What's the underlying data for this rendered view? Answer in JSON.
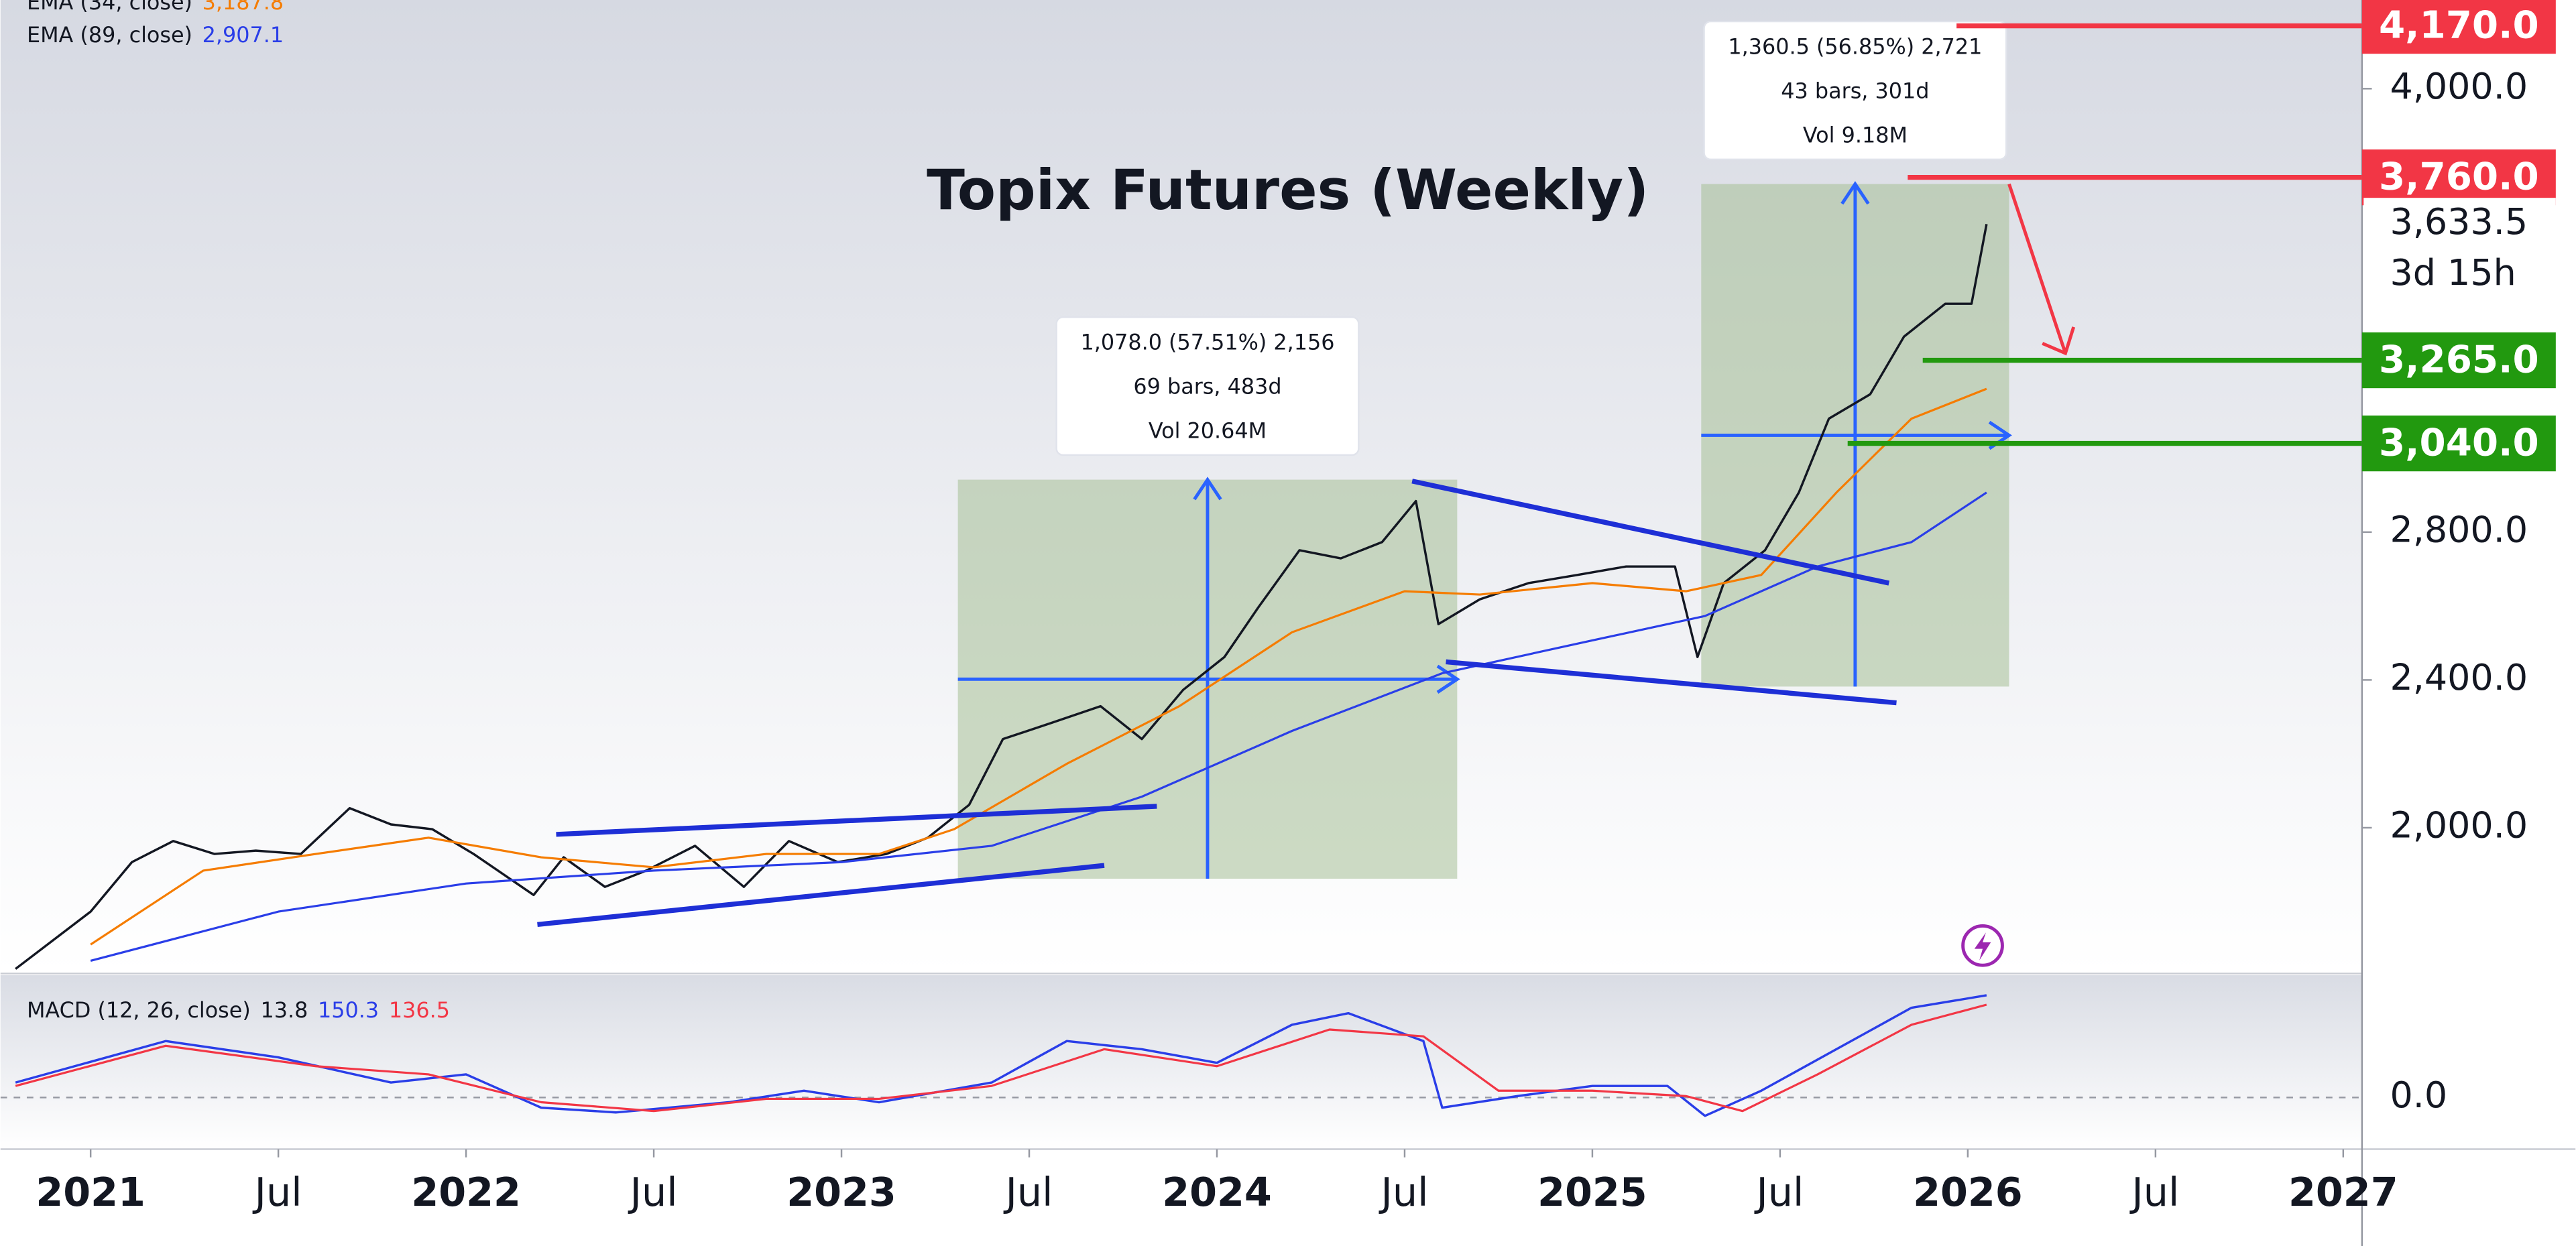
{
  "chart_data": [
    {
      "type": "line",
      "title": "Topix Futures (Weekly)",
      "xlim": [
        2020.76,
        2027.05
      ],
      "xticks": [
        2021,
        {
          "value": 2021.5,
          "label": "Jul"
        },
        2022,
        {
          "value": 2022.5,
          "label": "Jul"
        },
        2023,
        {
          "value": 2023.5,
          "label": "Jul"
        },
        2024,
        {
          "value": 2024.5,
          "label": "Jul"
        },
        2025,
        {
          "value": 2025.5,
          "label": "Jul"
        },
        2026,
        {
          "value": 2026.5,
          "label": "Jul"
        },
        2027
      ],
      "ylim": [
        1610,
        4240
      ],
      "yticks": [
        {
          "value": 2000,
          "label": "2,000.0"
        },
        {
          "value": 2400,
          "label": "2,400.0"
        },
        {
          "value": 2800,
          "label": "2,800.0"
        },
        {
          "value": 4000,
          "label": "4,000.0"
        }
      ],
      "series": [
        {
          "color": "#131722",
          "x": [
            2020.8,
            2021.0,
            2021.11,
            2021.22,
            2021.33,
            2021.44,
            2021.56,
            2021.69,
            2021.8,
            2021.91,
            2022.02,
            2022.18,
            2022.26,
            2022.37,
            2022.48,
            2022.61,
            2022.74,
            2022.86,
            2022.99,
            2023.12,
            2023.23,
            2023.34,
            2023.43,
            2023.56,
            2023.69,
            2023.8,
            2023.91,
            2024.02,
            2024.11,
            2024.22,
            2024.33,
            2024.44,
            2024.53,
            2024.59,
            2024.7,
            2024.83,
            2024.96,
            2025.09,
            2025.22,
            2025.28,
            2025.35,
            2025.46,
            2025.55,
            2025.63,
            2025.74,
            2025.83,
            2025.94,
            2026.01,
            2026.05
          ],
          "values": [
            1618,
            1773,
            1907,
            1964,
            1929,
            1938,
            1929,
            2053,
            2009,
            1996,
            1929,
            1818,
            1920,
            1840,
            1884,
            1951,
            1840,
            1964,
            1907,
            1929,
            1973,
            2062,
            2240,
            2284,
            2329,
            2240,
            2373,
            2462,
            2596,
            2751,
            2729,
            2773,
            2884,
            2551,
            2618,
            2662,
            2684,
            2707,
            2707,
            2462,
            2662,
            2751,
            2907,
            3107,
            3173,
            3329,
            3418,
            3418,
            3633.5
          ]
        },
        {
          "name": "EMA (34, close)",
          "legend_value": "3,187.8",
          "color": "#f57c00",
          "x": [
            2021.0,
            2021.3,
            2021.6,
            2021.9,
            2022.2,
            2022.5,
            2022.8,
            2023.1,
            2023.3,
            2023.6,
            2023.9,
            2024.2,
            2024.5,
            2024.7,
            2025.0,
            2025.25,
            2025.45,
            2025.65,
            2025.85,
            2026.05
          ],
          "values": [
            1684,
            1884,
            1929,
            1973,
            1920,
            1893,
            1929,
            1929,
            1996,
            2173,
            2329,
            2529,
            2640,
            2631,
            2662,
            2640,
            2684,
            2907,
            3107,
            3187.8
          ]
        },
        {
          "name": "EMA (89, close)",
          "legend_value": "2,907.1",
          "color": "#2a3ee8",
          "x": [
            2021.0,
            2021.5,
            2022.0,
            2022.5,
            2023.0,
            2023.4,
            2023.8,
            2024.2,
            2024.6,
            2025.0,
            2025.3,
            2025.6,
            2025.85,
            2026.05
          ],
          "values": [
            1640,
            1773,
            1849,
            1884,
            1907,
            1951,
            2084,
            2262,
            2418,
            2507,
            2573,
            2707,
            2773,
            2907.1
          ]
        }
      ],
      "last_price": {
        "value": 3633.5,
        "label": "3,633.5",
        "countdown": "3d 15h"
      },
      "levels": [
        {
          "value": 4170,
          "label": "4,170.0",
          "color": "#f23645",
          "start": 2025.97
        },
        {
          "value": 3760,
          "label": "3,760.0",
          "color": "#f23645",
          "start": 2025.84
        },
        {
          "value": 3265,
          "label": "3,265.0",
          "color": "#22990f",
          "start": 2025.88
        },
        {
          "value": 3040,
          "label": "3,040.0",
          "color": "#22990f",
          "start": 2025.68
        }
      ],
      "measures": [
        {
          "x": [
            2023.31,
            2024.64
          ],
          "y": [
            1862,
            2942
          ],
          "lines": [
            "1,078.0 (57.51%) 2,156",
            "69 bars, 483d",
            "Vol 20.64M"
          ]
        },
        {
          "x": [
            2025.29,
            2026.11
          ],
          "y": [
            2382,
            3742
          ],
          "lines": [
            "1,360.5 (56.85%) 2,721",
            "43 bars, 301d",
            "Vol 9.18M"
          ]
        }
      ],
      "trendlines": [
        {
          "color": "#1e2fd6",
          "x": [
            2022.24,
            2023.84
          ],
          "y": [
            1982,
            2058
          ]
        },
        {
          "color": "#1e2fd6",
          "x": [
            2022.19,
            2023.7
          ],
          "y": [
            1738,
            1898
          ]
        },
        {
          "color": "#1e2fd6",
          "x": [
            2024.52,
            2025.79
          ],
          "y": [
            2938,
            2662
          ]
        },
        {
          "color": "#1e2fd6",
          "x": [
            2024.61,
            2025.81
          ],
          "y": [
            2449,
            2338
          ]
        }
      ],
      "arrow": {
        "color": "#f23645",
        "x": [
          2026.11,
          2026.26
        ],
        "y": [
          3742,
          3284
        ]
      }
    },
    {
      "type": "line",
      "title": "MACD (12, 26, close)",
      "histogram_label": "13.8",
      "xlim": [
        2020.76,
        2027.05
      ],
      "ylim": [
        -76,
        180
      ],
      "yticks": [
        {
          "value": 0,
          "label": "0.0"
        }
      ],
      "series": [
        {
          "legend_value": "150.3",
          "color": "#2a3ee8",
          "x": [
            2020.8,
            2021.2,
            2021.5,
            2021.8,
            2022.0,
            2022.2,
            2022.4,
            2022.7,
            2022.9,
            2023.1,
            2023.4,
            2023.6,
            2023.8,
            2024.0,
            2024.2,
            2024.35,
            2024.55,
            2024.6,
            2024.8,
            2025.0,
            2025.2,
            2025.3,
            2025.45,
            2025.65,
            2025.85,
            2026.05
          ],
          "values": [
            22,
            83,
            59,
            22,
            34,
            -15,
            -22,
            -7,
            10,
            -7,
            22,
            83,
            71,
            51,
            107,
            124,
            83,
            -15,
            2,
            17,
            17,
            -27,
            10,
            71,
            132,
            150.3
          ]
        },
        {
          "legend_value": "136.5",
          "color": "#f23645",
          "x": [
            2020.8,
            2021.2,
            2021.6,
            2021.9,
            2022.2,
            2022.5,
            2022.8,
            2023.1,
            2023.4,
            2023.7,
            2024.0,
            2024.3,
            2024.55,
            2024.75,
            2025.0,
            2025.25,
            2025.4,
            2025.6,
            2025.85,
            2026.05
          ],
          "values": [
            17,
            76,
            46,
            34,
            -7,
            -20,
            -2,
            -2,
            17,
            71,
            46,
            100,
            90,
            10,
            10,
            2,
            -20,
            34,
            107,
            136.5
          ]
        }
      ]
    }
  ]
}
